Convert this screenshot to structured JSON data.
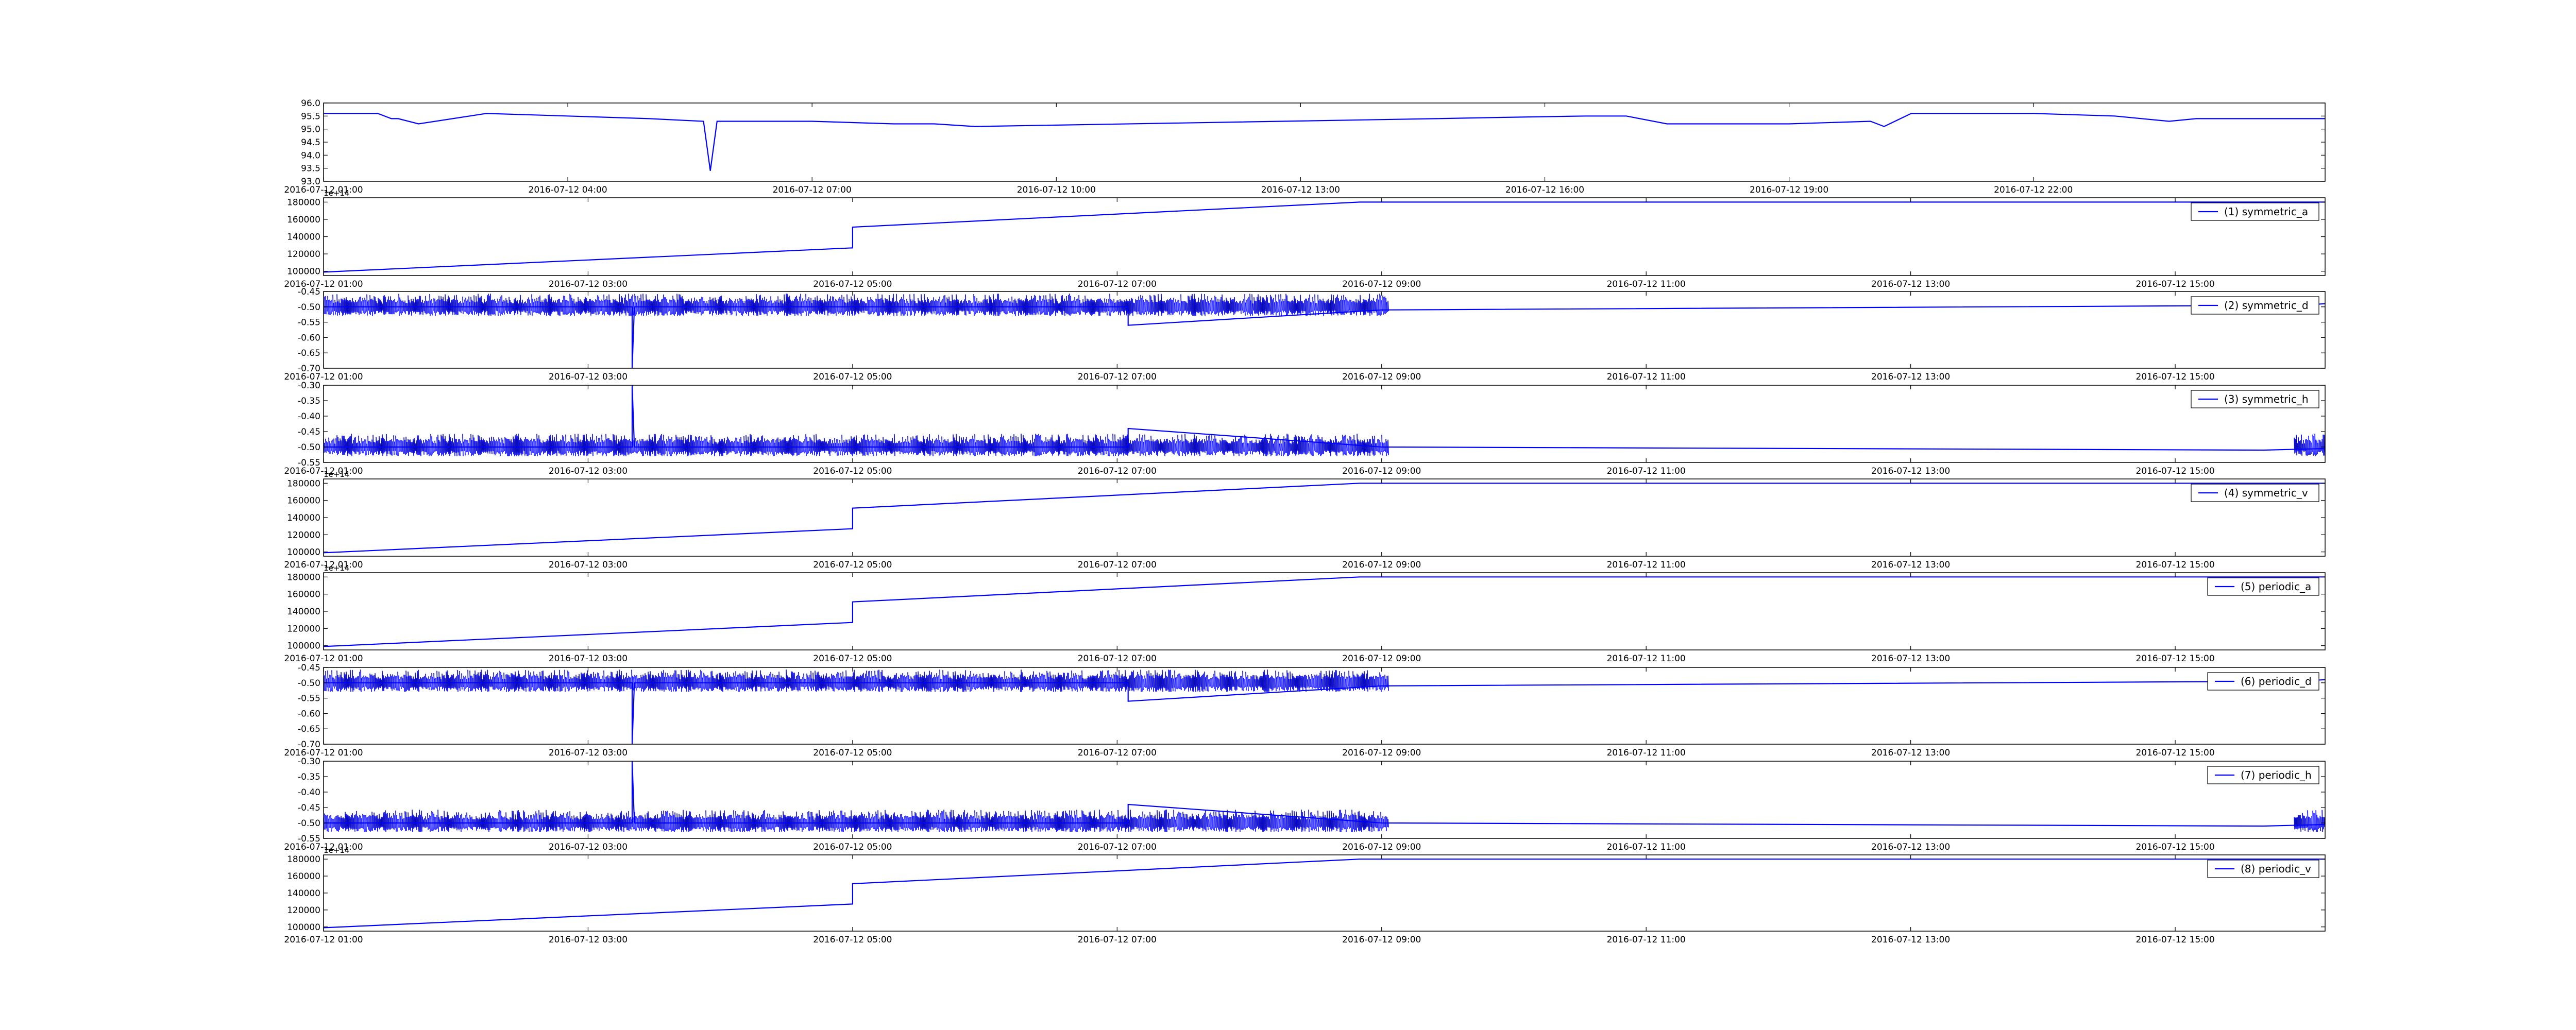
{
  "colors": {
    "line": "#0000ff",
    "axes": "#000000",
    "background": "#ffffff"
  },
  "chart_data": [
    {
      "id": "p0",
      "type": "line",
      "series": [],
      "x_ticks": [
        "2016-07-12 01:00",
        "2016-07-12 04:00",
        "2016-07-12 07:00",
        "2016-07-12 10:00",
        "2016-07-12 13:00",
        "2016-07-12 16:00",
        "2016-07-12 19:00",
        "2016-07-12 22:00"
      ],
      "x": [
        "2016-07-12 01:00",
        "2016-07-12 01:20",
        "2016-07-12 01:40",
        "2016-07-12 01:50",
        "2016-07-12 01:55",
        "2016-07-12 02:10",
        "2016-07-12 03:00",
        "2016-07-12 04:00",
        "2016-07-12 05:00",
        "2016-07-12 05:40",
        "2016-07-12 05:45",
        "2016-07-12 05:50",
        "2016-07-12 06:00",
        "2016-07-12 07:00",
        "2016-07-12 08:00",
        "2016-07-12 08:30",
        "2016-07-12 09:00",
        "2016-07-12 14:40",
        "2016-07-12 15:30",
        "2016-07-12 16:30",
        "2016-07-12 17:00",
        "2016-07-12 17:30",
        "2016-07-12 18:00",
        "2016-07-12 19:00",
        "2016-07-12 20:00",
        "2016-07-12 20:10",
        "2016-07-12 20:30",
        "2016-07-12 21:00",
        "2016-07-12 22:00",
        "2016-07-12 23:00",
        "2016-07-12 23:40",
        "2016-07-13 00:00",
        "2016-07-13 01:00",
        "2016-07-13 01:35"
      ],
      "values": [
        95.6,
        95.6,
        95.6,
        95.4,
        95.4,
        95.2,
        95.6,
        95.5,
        95.4,
        95.3,
        93.4,
        95.3,
        95.3,
        95.3,
        95.2,
        95.2,
        95.1,
        95.4,
        95.45,
        95.5,
        95.5,
        95.2,
        95.2,
        95.2,
        95.3,
        95.1,
        95.6,
        95.6,
        95.6,
        95.5,
        95.3,
        95.4,
        95.4,
        95.4
      ],
      "yticks": [
        "96.0",
        "95.5",
        "95.0",
        "94.5",
        "94.0",
        "93.5",
        "93.0"
      ],
      "ylim": [
        93.0,
        96.0
      ],
      "offset_text": "",
      "legend": ""
    },
    {
      "id": "p1",
      "type": "line",
      "series": [],
      "x_ticks": [
        "2016-07-12 01:00",
        "2016-07-12 03:00",
        "2016-07-12 05:00",
        "2016-07-12 07:00",
        "2016-07-12 09:00",
        "2016-07-12 11:00",
        "2016-07-12 13:00",
        "2016-07-12 15:00"
      ],
      "x": [
        "2016-07-12 01:00",
        "2016-07-12 05:00",
        "2016-07-12 05:00",
        "2016-07-12 08:50",
        "2016-07-12 16:08"
      ],
      "values": [
        99000,
        127000,
        151000,
        180000,
        180000
      ],
      "yticks": [
        "180000",
        "160000",
        "140000",
        "120000",
        "100000"
      ],
      "ylim": [
        95000,
        185000
      ],
      "offset_text": "1e+14",
      "legend": "(1) symmetric_a"
    },
    {
      "id": "p2",
      "type": "line",
      "series": [],
      "x_ticks": [
        "2016-07-12 01:00",
        "2016-07-12 03:00",
        "2016-07-12 05:00",
        "2016-07-12 07:00",
        "2016-07-12 09:00",
        "2016-07-12 11:00",
        "2016-07-12 13:00",
        "2016-07-12 15:00"
      ],
      "x": [
        "2016-07-12 01:00",
        "2016-07-12 03:20",
        "2016-07-12 03:20",
        "2016-07-12 03:21",
        "2016-07-12 07:05",
        "2016-07-12 07:05",
        "2016-07-12 09:00",
        "2016-07-12 15:55",
        "2016-07-12 16:08"
      ],
      "values": [
        -0.5,
        -0.5,
        -0.7,
        -0.5,
        -0.5,
        -0.56,
        -0.51,
        -0.495,
        -0.49
      ],
      "yticks": [
        "-0.45",
        "-0.50",
        "-0.55",
        "-0.60",
        "-0.65",
        "-0.70"
      ],
      "ylim": [
        -0.7,
        -0.45
      ],
      "offset_text": "",
      "legend": "(2) symmetric_d"
    },
    {
      "id": "p3",
      "type": "line",
      "series": [],
      "x_ticks": [
        "2016-07-12 01:00",
        "2016-07-12 03:00",
        "2016-07-12 05:00",
        "2016-07-12 07:00",
        "2016-07-12 09:00",
        "2016-07-12 11:00",
        "2016-07-12 13:00",
        "2016-07-12 15:00"
      ],
      "x": [
        "2016-07-12 01:00",
        "2016-07-12 03:20",
        "2016-07-12 03:20",
        "2016-07-12 03:21",
        "2016-07-12 07:05",
        "2016-07-12 07:05",
        "2016-07-12 09:00",
        "2016-07-12 15:40",
        "2016-07-12 16:08"
      ],
      "values": [
        -0.5,
        -0.5,
        -0.3,
        -0.5,
        -0.5,
        -0.44,
        -0.5,
        -0.51,
        -0.505
      ],
      "yticks": [
        "-0.30",
        "-0.35",
        "-0.40",
        "-0.45",
        "-0.50",
        "-0.55"
      ],
      "ylim": [
        -0.55,
        -0.3
      ],
      "offset_text": "",
      "legend": "(3) symmetric_h"
    },
    {
      "id": "p4",
      "type": "line",
      "series": [],
      "x_ticks": [
        "2016-07-12 01:00",
        "2016-07-12 03:00",
        "2016-07-12 05:00",
        "2016-07-12 07:00",
        "2016-07-12 09:00",
        "2016-07-12 11:00",
        "2016-07-12 13:00",
        "2016-07-12 15:00"
      ],
      "x": [
        "2016-07-12 01:00",
        "2016-07-12 05:00",
        "2016-07-12 05:00",
        "2016-07-12 08:50",
        "2016-07-12 16:08"
      ],
      "values": [
        99000,
        127000,
        151000,
        180000,
        180000
      ],
      "yticks": [
        "180000",
        "160000",
        "140000",
        "120000",
        "100000"
      ],
      "ylim": [
        95000,
        185000
      ],
      "offset_text": "1e+14",
      "legend": "(4) symmetric_v"
    },
    {
      "id": "p5",
      "type": "line",
      "series": [],
      "x_ticks": [
        "2016-07-12 01:00",
        "2016-07-12 03:00",
        "2016-07-12 05:00",
        "2016-07-12 07:00",
        "2016-07-12 09:00",
        "2016-07-12 11:00",
        "2016-07-12 13:00",
        "2016-07-12 15:00"
      ],
      "x": [
        "2016-07-12 01:00",
        "2016-07-12 05:00",
        "2016-07-12 05:00",
        "2016-07-12 08:50",
        "2016-07-12 16:08"
      ],
      "values": [
        99000,
        127000,
        151000,
        180000,
        180000
      ],
      "yticks": [
        "180000",
        "160000",
        "140000",
        "120000",
        "100000"
      ],
      "ylim": [
        95000,
        185000
      ],
      "offset_text": "1e+14",
      "legend": "(5) periodic_a"
    },
    {
      "id": "p6",
      "type": "line",
      "series": [],
      "x_ticks": [
        "2016-07-12 01:00",
        "2016-07-12 03:00",
        "2016-07-12 05:00",
        "2016-07-12 07:00",
        "2016-07-12 09:00",
        "2016-07-12 11:00",
        "2016-07-12 13:00",
        "2016-07-12 15:00"
      ],
      "x": [
        "2016-07-12 01:00",
        "2016-07-12 03:20",
        "2016-07-12 03:20",
        "2016-07-12 03:21",
        "2016-07-12 07:05",
        "2016-07-12 07:05",
        "2016-07-12 09:00",
        "2016-07-12 15:55",
        "2016-07-12 16:08"
      ],
      "values": [
        -0.5,
        -0.5,
        -0.7,
        -0.5,
        -0.5,
        -0.56,
        -0.51,
        -0.495,
        -0.49
      ],
      "yticks": [
        "-0.45",
        "-0.50",
        "-0.55",
        "-0.60",
        "-0.65",
        "-0.70"
      ],
      "ylim": [
        -0.7,
        -0.45
      ],
      "offset_text": "",
      "legend": "(6) periodic_d"
    },
    {
      "id": "p7",
      "type": "line",
      "series": [],
      "x_ticks": [
        "2016-07-12 01:00",
        "2016-07-12 03:00",
        "2016-07-12 05:00",
        "2016-07-12 07:00",
        "2016-07-12 09:00",
        "2016-07-12 11:00",
        "2016-07-12 13:00",
        "2016-07-12 15:00"
      ],
      "x": [
        "2016-07-12 01:00",
        "2016-07-12 03:20",
        "2016-07-12 03:20",
        "2016-07-12 03:21",
        "2016-07-12 07:05",
        "2016-07-12 07:05",
        "2016-07-12 09:00",
        "2016-07-12 15:40",
        "2016-07-12 16:08"
      ],
      "values": [
        -0.5,
        -0.5,
        -0.3,
        -0.5,
        -0.5,
        -0.44,
        -0.5,
        -0.51,
        -0.505
      ],
      "yticks": [
        "-0.30",
        "-0.35",
        "-0.40",
        "-0.45",
        "-0.50",
        "-0.55"
      ],
      "ylim": [
        -0.55,
        -0.3
      ],
      "offset_text": "",
      "legend": "(7) periodic_h"
    },
    {
      "id": "p8",
      "type": "line",
      "series": [],
      "x_ticks": [
        "2016-07-12 01:00",
        "2016-07-12 03:00",
        "2016-07-12 05:00",
        "2016-07-12 07:00",
        "2016-07-12 09:00",
        "2016-07-12 11:00",
        "2016-07-12 13:00",
        "2016-07-12 15:00"
      ],
      "x": [
        "2016-07-12 01:00",
        "2016-07-12 05:00",
        "2016-07-12 05:00",
        "2016-07-12 08:50",
        "2016-07-12 16:08"
      ],
      "values": [
        99000,
        127000,
        151000,
        180000,
        180000
      ],
      "yticks": [
        "180000",
        "160000",
        "140000",
        "120000",
        "100000"
      ],
      "ylim": [
        95000,
        185000
      ],
      "offset_text": "1e+14",
      "legend": "(8) periodic_v"
    }
  ]
}
